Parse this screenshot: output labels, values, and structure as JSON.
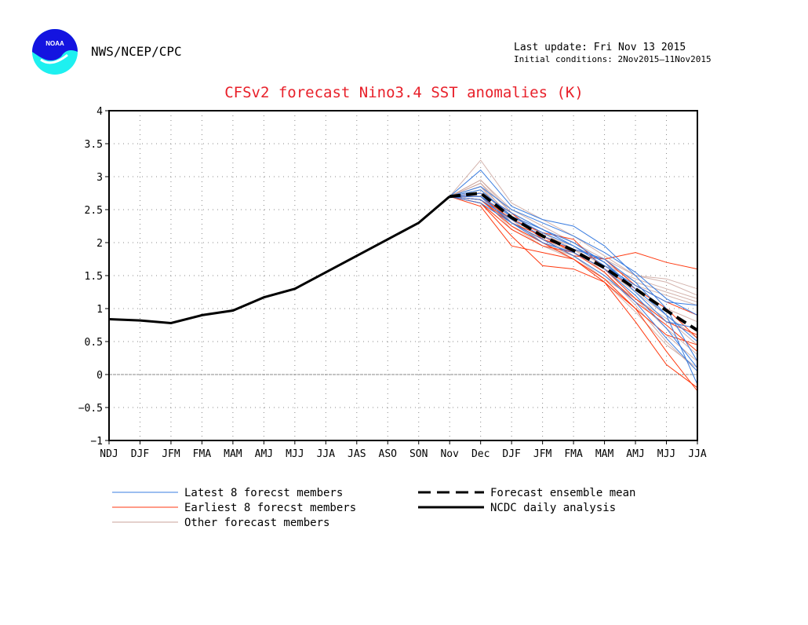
{
  "header": {
    "organization": "NWS/NCEP/CPC",
    "logo_text": "NOAA",
    "last_update": "Last update: Fri Nov 13 2015",
    "initial_conditions": "Initial conditions: 2Nov2015–11Nov2015"
  },
  "chart_data": {
    "type": "line",
    "title": "CFSv2 forecast Nino3.4 SST anomalies (K)",
    "xlabel": "",
    "ylabel": "",
    "ylim": [
      -1,
      4
    ],
    "yticks": [
      "−1",
      "−0.5",
      "0",
      "0.5",
      "1",
      "1.5",
      "2",
      "2.5",
      "3",
      "3.5",
      "4"
    ],
    "categories": [
      "NDJ",
      "DJF",
      "JFM",
      "FMA",
      "MAM",
      "AMJ",
      "MJJ",
      "JJA",
      "JAS",
      "ASO",
      "SON",
      "Nov",
      "Dec",
      "DJF",
      "JFM",
      "FMA",
      "MAM",
      "AMJ",
      "MJJ",
      "JJA"
    ],
    "grid": "dotted",
    "legend_placement": "bottom",
    "colors": {
      "latest": "#3a7de0",
      "earliest": "#ff3a10",
      "other": "#c8a098",
      "mean": "#000000",
      "analysis": "#000000"
    },
    "analysis": {
      "name": "NCDC daily analysis",
      "values": [
        0.84,
        0.82,
        0.78,
        0.9,
        0.97,
        1.17,
        1.3,
        1.55,
        1.8,
        2.05,
        2.3,
        2.7
      ]
    },
    "ensemble_mean": {
      "name": "Forecast ensemble mean",
      "start_index": 11,
      "values": [
        2.7,
        2.75,
        2.38,
        2.1,
        1.88,
        1.62,
        1.3,
        0.97,
        0.67
      ]
    },
    "member_groups": [
      {
        "name": "Other forecast members",
        "color_key": "other",
        "start_index": 11,
        "members": [
          [
            2.7,
            3.25,
            2.6,
            2.35,
            2.1,
            1.8,
            1.5,
            1.45,
            1.3
          ],
          [
            2.7,
            2.95,
            2.5,
            2.25,
            2.0,
            1.75,
            1.5,
            1.4,
            1.2
          ],
          [
            2.7,
            2.9,
            2.45,
            2.1,
            1.95,
            1.65,
            1.35,
            1.2,
            1.05
          ],
          [
            2.7,
            2.85,
            2.4,
            2.05,
            1.85,
            1.6,
            1.25,
            0.9,
            0.55
          ],
          [
            2.7,
            2.8,
            2.35,
            2.0,
            1.8,
            1.5,
            1.15,
            0.7,
            0.3
          ],
          [
            2.7,
            2.85,
            2.3,
            2.05,
            1.9,
            1.55,
            1.05,
            0.5,
            0.05
          ],
          [
            2.7,
            2.75,
            2.25,
            1.95,
            1.8,
            1.45,
            1.0,
            0.6,
            0.2
          ],
          [
            2.7,
            2.8,
            2.4,
            2.15,
            1.9,
            1.65,
            1.45,
            1.3,
            1.15
          ],
          [
            2.7,
            2.9,
            2.35,
            2.0,
            1.75,
            1.4,
            0.95,
            0.45,
            0.1
          ],
          [
            2.7,
            2.75,
            2.3,
            2.1,
            1.85,
            1.6,
            1.3,
            1.0,
            0.8
          ],
          [
            2.7,
            2.95,
            2.45,
            2.2,
            1.95,
            1.7,
            1.4,
            1.25,
            1.1
          ],
          [
            2.7,
            2.7,
            2.2,
            1.95,
            1.75,
            1.45,
            1.15,
            0.85,
            0.45
          ]
        ]
      },
      {
        "name": "Earliest 8 forecst members",
        "color_key": "earliest",
        "start_index": 11,
        "members": [
          [
            2.7,
            2.65,
            2.3,
            2.05,
            1.8,
            1.75,
            1.85,
            1.7,
            1.6
          ],
          [
            2.7,
            2.6,
            2.1,
            1.65,
            1.6,
            1.4,
            1.0,
            0.35,
            -0.25
          ],
          [
            2.7,
            2.55,
            1.95,
            1.85,
            1.75,
            1.4,
            0.8,
            0.15,
            -0.2
          ],
          [
            2.7,
            2.7,
            2.35,
            2.15,
            2.05,
            1.6,
            1.15,
            0.8,
            0.6
          ],
          [
            2.7,
            2.75,
            2.45,
            2.05,
            1.9,
            1.75,
            1.35,
            1.1,
            0.9
          ],
          [
            2.7,
            2.6,
            2.2,
            1.95,
            1.85,
            1.55,
            1.1,
            0.75,
            0.35
          ],
          [
            2.7,
            2.7,
            2.3,
            2.1,
            1.85,
            1.6,
            1.3,
            1.0,
            0.55
          ],
          [
            2.7,
            2.65,
            2.25,
            2.0,
            1.75,
            1.45,
            1.0,
            0.6,
            0.45
          ]
        ]
      },
      {
        "name": "Latest 8 forecast members",
        "color_key": "latest",
        "start_index": 11,
        "members": [
          [
            2.7,
            3.1,
            2.55,
            2.35,
            2.25,
            1.95,
            1.5,
            1.0,
            0.2
          ],
          [
            2.7,
            2.85,
            2.5,
            2.3,
            2.1,
            1.85,
            1.55,
            1.15,
            0.9
          ],
          [
            2.7,
            2.8,
            2.4,
            2.2,
            2.0,
            1.7,
            1.3,
            0.9,
            0.5
          ],
          [
            2.7,
            2.7,
            2.3,
            2.0,
            1.85,
            1.6,
            1.2,
            0.7,
            0.1
          ],
          [
            2.7,
            2.65,
            2.35,
            2.1,
            1.9,
            1.75,
            1.4,
            0.9,
            -0.15
          ],
          [
            2.7,
            2.75,
            2.45,
            2.2,
            1.95,
            1.65,
            1.35,
            1.1,
            1.05
          ],
          [
            2.7,
            2.6,
            2.3,
            2.05,
            1.8,
            1.5,
            1.1,
            0.55,
            0.05
          ],
          [
            2.7,
            2.7,
            2.4,
            2.15,
            1.95,
            1.7,
            1.25,
            0.8,
            0.7
          ]
        ]
      }
    ],
    "legend": {
      "latest": "Latest 8 forecst members",
      "earliest": "Earliest 8 forecst members",
      "other": "Other forecast members",
      "mean": "Forecast ensemble mean",
      "analysis": "NCDC daily analysis"
    }
  }
}
